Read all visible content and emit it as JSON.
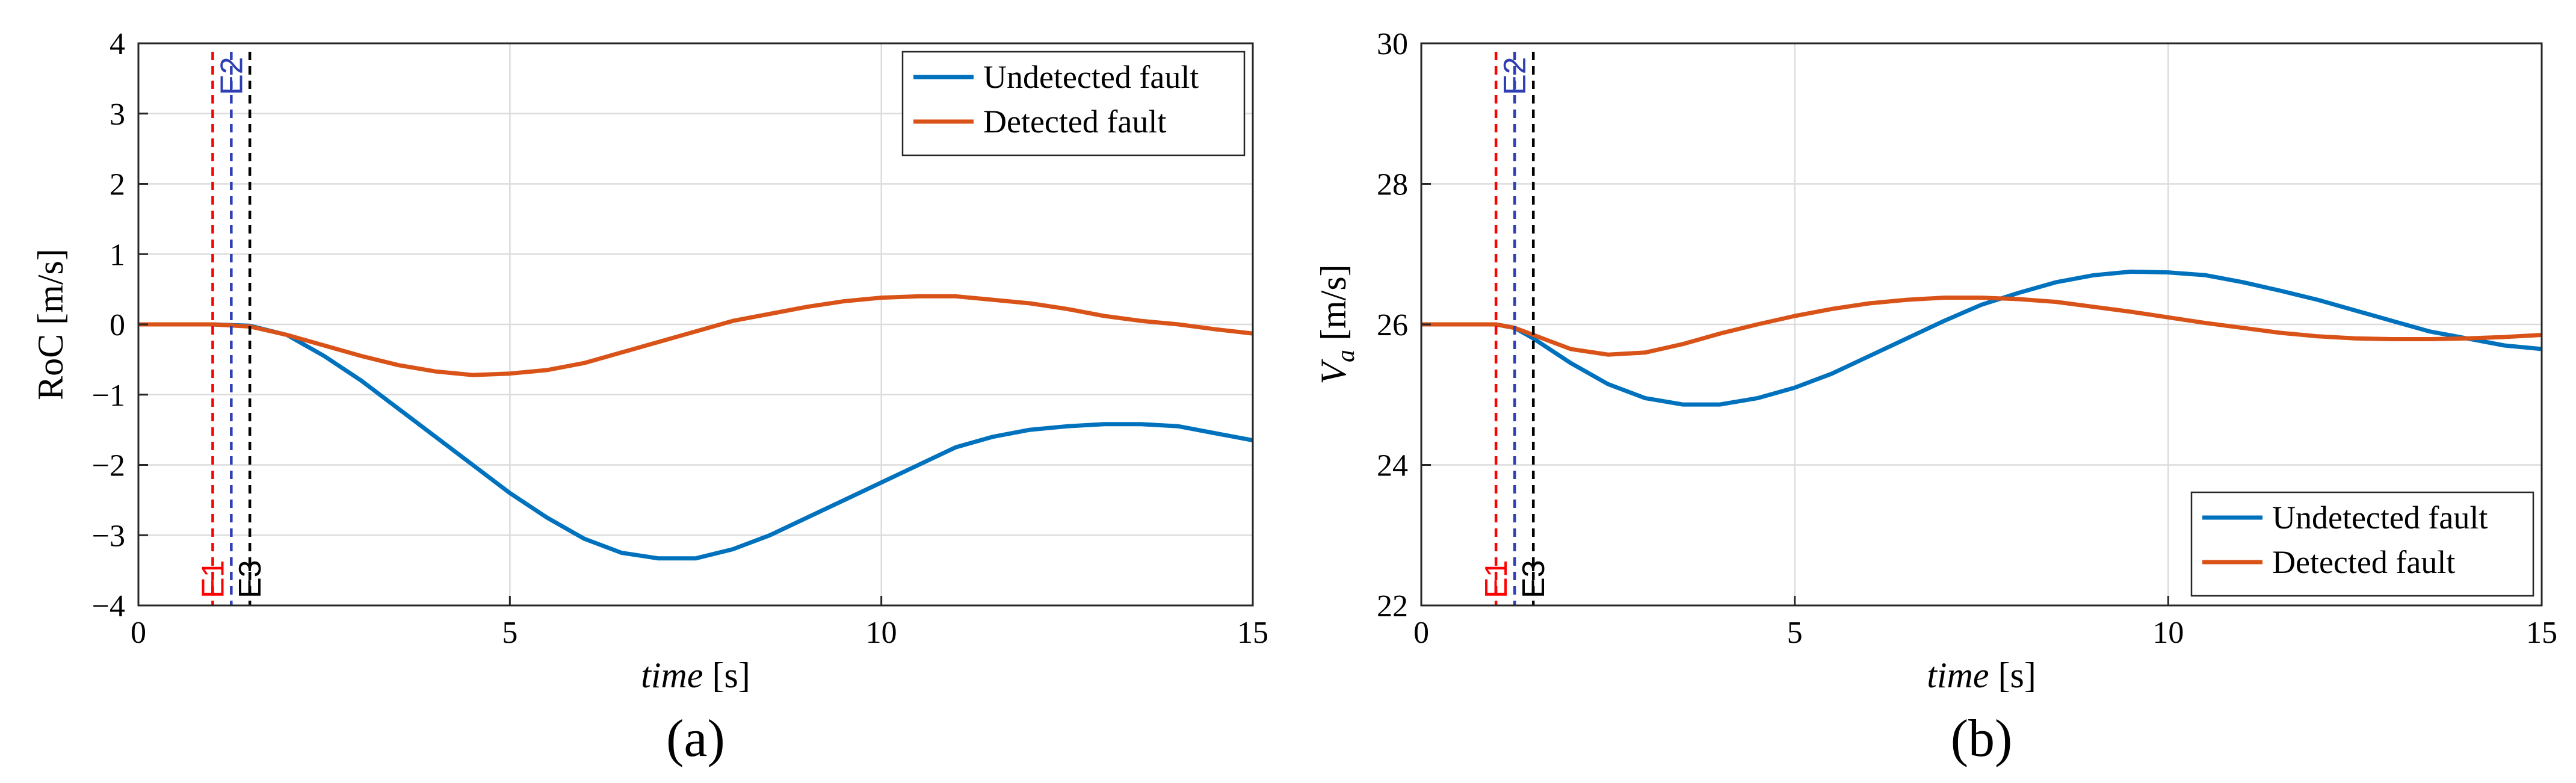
{
  "chart_data": [
    {
      "type": "line",
      "caption": "(a)",
      "xlabel": {
        "italic": "time",
        "unit": " [s]"
      },
      "ylabel": {
        "main": "RoC",
        "sub": "",
        "unit": " [m/s]"
      },
      "xlim": [
        0,
        15
      ],
      "ylim": [
        -4,
        4
      ],
      "xticks": [
        0,
        5,
        10,
        15
      ],
      "yticks": [
        -4,
        -3,
        -2,
        -1,
        0,
        1,
        2,
        3,
        4
      ],
      "grid": true,
      "legend_position": "top-right",
      "events": [
        {
          "label": "E1",
          "x": 1.0,
          "color": "#ff0000",
          "label_position": "bottom"
        },
        {
          "label": "E2",
          "x": 1.25,
          "color": "#2e3eb4",
          "label_position": "top"
        },
        {
          "label": "E3",
          "x": 1.5,
          "color": "#000000",
          "label_position": "bottom"
        }
      ],
      "series": [
        {
          "name": "Undetected fault",
          "color": "#0072bd",
          "x": [
            0,
            0.5,
            1.0,
            1.5,
            2.0,
            2.5,
            3.0,
            3.5,
            4.0,
            4.5,
            5.0,
            5.5,
            6.0,
            6.5,
            7.0,
            7.5,
            8.0,
            8.5,
            9.0,
            9.5,
            10.0,
            10.5,
            11.0,
            11.5,
            12.0,
            12.5,
            13.0,
            13.5,
            14.0,
            14.5,
            15.0
          ],
          "y": [
            0,
            0,
            0,
            -0.02,
            -0.15,
            -0.45,
            -0.8,
            -1.2,
            -1.6,
            -2.0,
            -2.4,
            -2.75,
            -3.05,
            -3.25,
            -3.33,
            -3.33,
            -3.2,
            -3.0,
            -2.75,
            -2.5,
            -2.25,
            -2.0,
            -1.75,
            -1.6,
            -1.5,
            -1.45,
            -1.42,
            -1.42,
            -1.45,
            -1.55,
            -1.65
          ]
        },
        {
          "name": "Detected fault",
          "color": "#d95319",
          "x": [
            0,
            0.5,
            1.0,
            1.5,
            2.0,
            2.5,
            3.0,
            3.5,
            4.0,
            4.5,
            5.0,
            5.5,
            6.0,
            6.5,
            7.0,
            7.5,
            8.0,
            8.5,
            9.0,
            9.5,
            10.0,
            10.5,
            11.0,
            11.5,
            12.0,
            12.5,
            13.0,
            13.5,
            14.0,
            14.5,
            15.0
          ],
          "y": [
            0,
            0,
            0,
            -0.03,
            -0.15,
            -0.3,
            -0.45,
            -0.58,
            -0.67,
            -0.72,
            -0.7,
            -0.65,
            -0.55,
            -0.4,
            -0.25,
            -0.1,
            0.05,
            0.15,
            0.25,
            0.33,
            0.38,
            0.4,
            0.4,
            0.35,
            0.3,
            0.22,
            0.12,
            0.05,
            0.0,
            -0.07,
            -0.13
          ]
        }
      ]
    },
    {
      "type": "line",
      "caption": "(b)",
      "xlabel": {
        "italic": "time",
        "unit": " [s]"
      },
      "ylabel": {
        "main": "V",
        "sub": "a",
        "unit": " [m/s]"
      },
      "xlim": [
        0,
        15
      ],
      "ylim": [
        22,
        30
      ],
      "xticks": [
        0,
        5,
        10,
        15
      ],
      "yticks": [
        22,
        24,
        26,
        28,
        30
      ],
      "grid": true,
      "legend_position": "bottom-right",
      "events": [
        {
          "label": "E1",
          "x": 1.0,
          "color": "#ff0000",
          "label_position": "bottom"
        },
        {
          "label": "E2",
          "x": 1.25,
          "color": "#2e3eb4",
          "label_position": "top"
        },
        {
          "label": "E3",
          "x": 1.5,
          "color": "#000000",
          "label_position": "bottom"
        }
      ],
      "series": [
        {
          "name": "Undetected fault",
          "color": "#0072bd",
          "x": [
            0,
            0.5,
            1.0,
            1.25,
            1.5,
            2.0,
            2.5,
            3.0,
            3.5,
            4.0,
            4.5,
            5.0,
            5.5,
            6.0,
            6.5,
            7.0,
            7.5,
            8.0,
            8.5,
            9.0,
            9.5,
            10.0,
            10.5,
            11.0,
            11.5,
            12.0,
            12.5,
            13.0,
            13.5,
            14.0,
            14.5,
            15.0
          ],
          "y": [
            26,
            26,
            26,
            25.95,
            25.8,
            25.45,
            25.15,
            24.95,
            24.86,
            24.86,
            24.95,
            25.1,
            25.3,
            25.55,
            25.8,
            26.05,
            26.28,
            26.45,
            26.6,
            26.7,
            26.75,
            26.74,
            26.7,
            26.6,
            26.48,
            26.35,
            26.2,
            26.05,
            25.9,
            25.8,
            25.7,
            25.65
          ]
        },
        {
          "name": "Detected fault",
          "color": "#d95319",
          "x": [
            0,
            0.5,
            1.0,
            1.25,
            1.5,
            2.0,
            2.5,
            3.0,
            3.5,
            4.0,
            4.5,
            5.0,
            5.5,
            6.0,
            6.5,
            7.0,
            7.5,
            8.0,
            8.5,
            9.0,
            9.5,
            10.0,
            10.5,
            11.0,
            11.5,
            12.0,
            12.5,
            13.0,
            13.5,
            14.0,
            14.5,
            15.0
          ],
          "y": [
            26,
            26,
            26,
            25.95,
            25.85,
            25.65,
            25.57,
            25.6,
            25.72,
            25.87,
            26.0,
            26.12,
            26.22,
            26.3,
            26.35,
            26.38,
            26.38,
            26.36,
            26.32,
            26.25,
            26.18,
            26.1,
            26.02,
            25.95,
            25.88,
            25.83,
            25.8,
            25.79,
            25.79,
            25.8,
            25.82,
            25.85
          ]
        }
      ]
    }
  ]
}
